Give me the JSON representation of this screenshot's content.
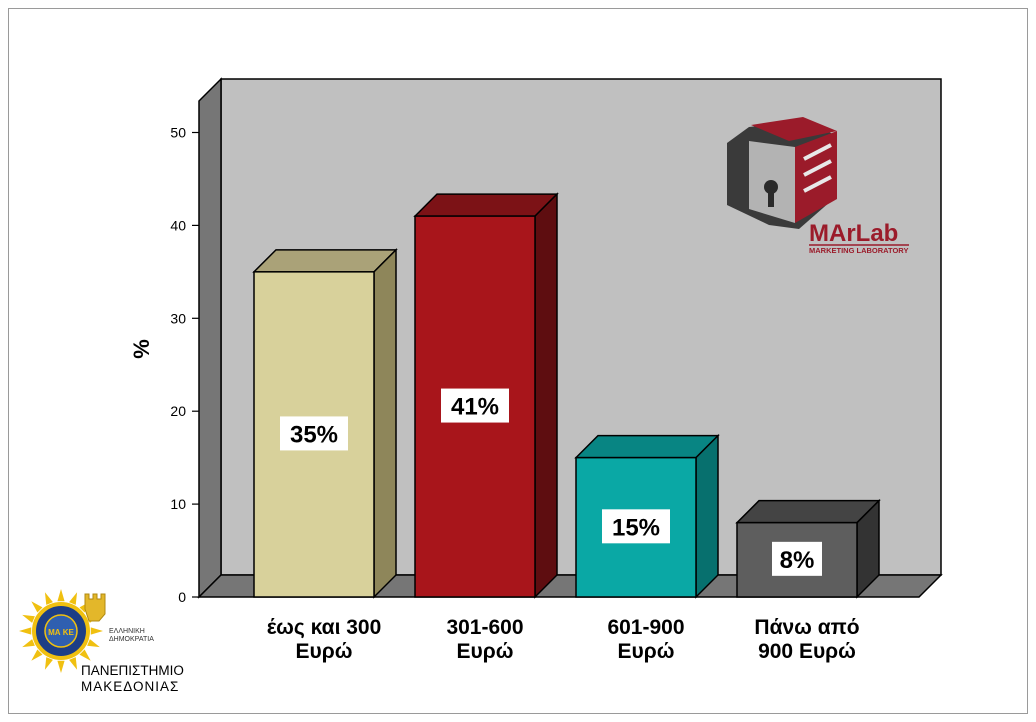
{
  "chart_data": {
    "type": "bar",
    "title": "",
    "ylabel": "%",
    "xlabel": "",
    "ylim": [
      0,
      50
    ],
    "yticks": [
      0,
      10,
      20,
      30,
      40,
      50
    ],
    "categories": [
      [
        "έως και 300",
        "Ευρώ"
      ],
      [
        "301-600",
        "Ευρώ"
      ],
      [
        "601-900",
        "Ευρώ"
      ],
      [
        "Πάνω από",
        "900 Ευρώ"
      ]
    ],
    "values": [
      35,
      41,
      15,
      8
    ],
    "data_labels": [
      "35%",
      "41%",
      "15%",
      "8%"
    ],
    "bar_colors": [
      {
        "front": "#d8d19b",
        "side": "#8e865a",
        "top": "#aaa278"
      },
      {
        "front": "#a8151b",
        "side": "#5e0d10",
        "top": "#7c1216"
      },
      {
        "front": "#0aa8a5",
        "side": "#07706e",
        "top": "#088583"
      },
      {
        "front": "#5e5e5e",
        "side": "#333333",
        "top": "#444444"
      }
    ],
    "plot_background": "#c0c0c0",
    "grid": false,
    "style": "3d"
  },
  "logos": {
    "marlab": {
      "name": "MArLab",
      "subtitle": "MARKETING LABORATORY"
    },
    "university": {
      "line1": "ΠΑΝΕΠΙΣΤΗΜΙΟ",
      "line2": "ΜΑΚΕΔΟΝΙΑΣ",
      "badge_line1": "ΕΛΛΗΝΙΚΗ",
      "badge_line2": "ΔΗΜΟΚΡΑΤΙΑ",
      "seal_text": "ΜΑ ΚΕ"
    }
  }
}
